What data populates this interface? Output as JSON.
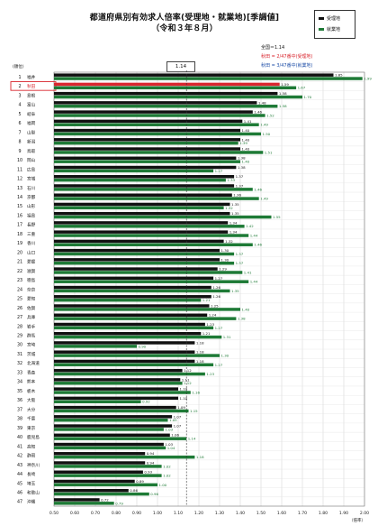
{
  "chart_data": {
    "type": "bar",
    "orientation": "horizontal",
    "title": "都道府県別有効求人倍率(受理地・就業地)[季調値]",
    "subtitle": "（令和３年８月）",
    "rank_header": "(順位)",
    "x_unit": "（倍率）",
    "xlim": [
      0.5,
      2.0
    ],
    "xticks": [
      "0.50",
      "0.60",
      "0.70",
      "0.80",
      "0.90",
      "1.00",
      "1.10",
      "1.20",
      "1.30",
      "1.40",
      "1.50",
      "1.60",
      "1.70",
      "1.80",
      "1.90",
      "2.00"
    ],
    "national_value": 1.14,
    "national_label": "1.14",
    "national_note": "全国＝1.14",
    "rank_note_received": "秋田 = 2/47番中(受理地)",
    "rank_note_employed": "秋田 = 3/47番中(就業地)",
    "highlight_rank": 2,
    "colors": {
      "received": "#111111",
      "employed": "#1e7a36",
      "highlight": "#d9262e",
      "note_received": "#d9262e",
      "note_employed": "#1f4fa8"
    },
    "series": [
      {
        "name": "受理地",
        "values": [
          1.85,
          1.59,
          1.58,
          1.48,
          1.46,
          1.41,
          1.4,
          1.4,
          1.4,
          1.38,
          1.38,
          1.37,
          1.37,
          1.36,
          1.35,
          1.35,
          1.34,
          1.34,
          1.32,
          1.3,
          1.3,
          1.29,
          1.27,
          1.26,
          1.26,
          1.25,
          1.24,
          1.23,
          1.21,
          1.18,
          1.18,
          1.18,
          1.12,
          1.11,
          1.1,
          1.1,
          1.09,
          1.07,
          1.07,
          1.06,
          1.03,
          0.94,
          0.94,
          0.93,
          0.89,
          0.86,
          0.72
        ]
      },
      {
        "name": "就業地",
        "values": [
          1.99,
          1.67,
          1.7,
          1.58,
          1.52,
          1.49,
          1.5,
          1.39,
          1.51,
          1.4,
          1.27,
          1.33,
          1.46,
          1.49,
          1.32,
          1.55,
          1.42,
          1.44,
          1.46,
          1.37,
          1.37,
          1.41,
          1.44,
          1.35,
          1.21,
          1.4,
          1.38,
          1.27,
          1.31,
          0.9,
          1.3,
          1.27,
          1.23,
          1.12,
          1.16,
          0.92,
          1.15,
          1.05,
          1.03,
          1.14,
          1.04,
          1.18,
          1.02,
          1.02,
          1.0,
          0.96,
          0.79
        ]
      }
    ],
    "labels_received": [
      "1.85",
      "1.59",
      "1.58",
      "1.48",
      "1.46",
      "1.41",
      "1.40",
      "1.40",
      "1.40",
      "1.38",
      "1.38",
      "1.37",
      "1.37",
      "1.36",
      "1.35",
      "1.35",
      "1.34",
      "1.34",
      "1.32",
      "1.30",
      "1.30",
      "1.29",
      "1.27",
      "1.26",
      "1.26",
      "1.25",
      "1.24",
      "1.23",
      "1.21",
      "1.18",
      "1.18",
      "1.18",
      "1.12",
      "1.11",
      "1.10",
      "1.10",
      "1.09",
      "1.07",
      "1.07",
      "1.06",
      "1.03",
      "0.94",
      "0.94",
      "0.93",
      "0.89",
      "0.86",
      "0.72"
    ],
    "labels_employed": [
      "1.99",
      "1.67",
      "1.70",
      "1.58",
      "1.52",
      "1.49",
      "1.50",
      "1.39",
      "1.51",
      "1.40",
      "1.27",
      "1.33",
      "1.46",
      "1.49",
      "1.32",
      "1.55",
      "1.42",
      "1.44",
      "1.46",
      "1.37",
      "1.37",
      "1.41",
      "1.44",
      "1.35",
      "1.21",
      "1.40",
      "1.38",
      "1.27",
      "1.31",
      "0.90",
      "1.30",
      "1.27",
      "1.23",
      "1.12",
      "1.16",
      "0.92",
      "1.15",
      "1.05",
      "1.03",
      "1.14",
      "1.04",
      "1.18",
      "1.02",
      "1.02",
      "1.00",
      "0.96",
      "0.79"
    ],
    "ranks": [
      "1",
      "2",
      "3",
      "4",
      "5",
      "6",
      "7",
      "8",
      "9",
      "10",
      "11",
      "12",
      "13",
      "14",
      "15",
      "16",
      "17",
      "18",
      "19",
      "20",
      "21",
      "22",
      "23",
      "24",
      "25",
      "26",
      "27",
      "28",
      "29",
      "30",
      "31",
      "32",
      "33",
      "34",
      "35",
      "36",
      "37",
      "38",
      "39",
      "40",
      "41",
      "42",
      "43",
      "44",
      "45",
      "46",
      "47"
    ],
    "prefectures": [
      "福井",
      "秋田",
      "島根",
      "富山",
      "岐阜",
      "福岡",
      "山梨",
      "新潟",
      "鳥取",
      "岡山",
      "広島",
      "宮城",
      "石川",
      "京都",
      "山形",
      "福島",
      "長野",
      "三重",
      "香川",
      "山口",
      "愛媛",
      "滋賀",
      "徳島",
      "奈良",
      "愛知",
      "佐賀",
      "兵庫",
      "岩手",
      "群馬",
      "宮崎",
      "茨城",
      "北海道",
      "青森",
      "熊本",
      "栃木",
      "大阪",
      "大分",
      "千葉",
      "東京",
      "鹿児島",
      "高知",
      "静岡",
      "神奈川",
      "長崎",
      "埼玉",
      "和歌山",
      "沖縄"
    ]
  }
}
